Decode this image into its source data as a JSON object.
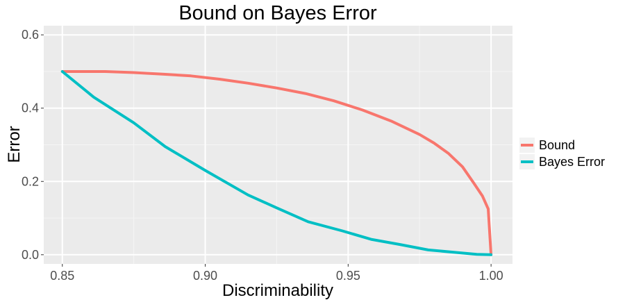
{
  "chart_data": {
    "type": "line",
    "title": "Bound on Bayes Error",
    "xlabel": "Discriminability",
    "ylabel": "Error",
    "xlim": [
      0.8435,
      1.0075
    ],
    "ylim": [
      -0.025,
      0.625
    ],
    "xticks": [
      0.85,
      0.9,
      0.95,
      1.0
    ],
    "xtick_labels": [
      "0.85",
      "0.90",
      "0.95",
      "1.00"
    ],
    "yticks": [
      0.0,
      0.2,
      0.4,
      0.6
    ],
    "ytick_labels": [
      "0.0",
      "0.2",
      "0.4",
      "0.6"
    ],
    "grid": true,
    "legend_position": "right",
    "series": [
      {
        "name": "Bound",
        "color": "#F8766D",
        "x": [
          0.85,
          0.865,
          0.875,
          0.885,
          0.895,
          0.905,
          0.915,
          0.925,
          0.935,
          0.945,
          0.955,
          0.965,
          0.975,
          0.98,
          0.985,
          0.99,
          0.994,
          0.997,
          0.999,
          1.0
        ],
        "y": [
          0.5,
          0.5,
          0.497,
          0.493,
          0.488,
          0.479,
          0.468,
          0.455,
          0.44,
          0.42,
          0.395,
          0.365,
          0.328,
          0.305,
          0.277,
          0.24,
          0.195,
          0.16,
          0.125,
          0.0
        ]
      },
      {
        "name": "Bayes Error",
        "color": "#00BFC4",
        "x": [
          0.85,
          0.861,
          0.875,
          0.886,
          0.9,
          0.915,
          0.925,
          0.936,
          0.948,
          0.958,
          0.968,
          0.978,
          0.988,
          0.995,
          1.0
        ],
        "y": [
          0.5,
          0.43,
          0.36,
          0.295,
          0.23,
          0.163,
          0.128,
          0.09,
          0.065,
          0.042,
          0.028,
          0.013,
          0.006,
          0.001,
          0.0
        ]
      }
    ]
  }
}
